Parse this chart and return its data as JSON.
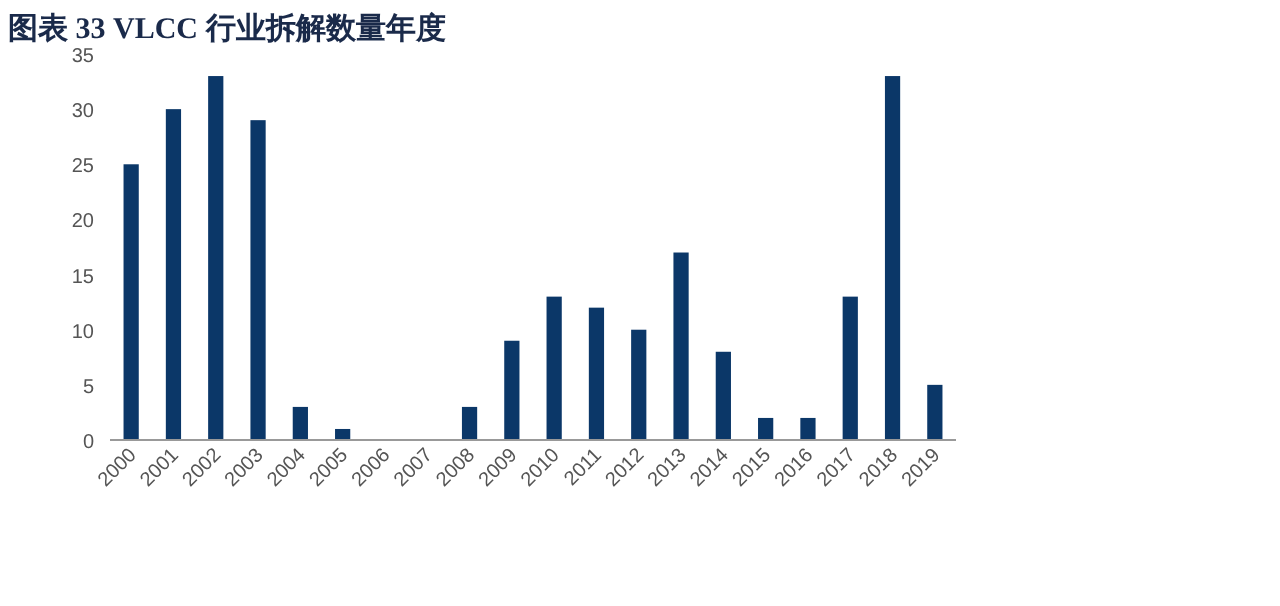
{
  "chart_data": {
    "type": "bar",
    "title": "图表 33   VLCC 行业拆解数量年度",
    "categories": [
      "2000",
      "2001",
      "2002",
      "2003",
      "2004",
      "2005",
      "2006",
      "2007",
      "2008",
      "2009",
      "2010",
      "2011",
      "2012",
      "2013",
      "2014",
      "2015",
      "2016",
      "2017",
      "2018",
      "2019"
    ],
    "values": [
      25,
      30,
      33,
      29,
      3,
      1,
      0,
      0,
      3,
      9,
      13,
      12,
      10,
      17,
      8,
      2,
      2,
      13,
      33,
      5
    ],
    "color": "#0b3768",
    "ylim": [
      0,
      35
    ],
    "yticks": [
      0,
      5,
      10,
      15,
      20,
      25,
      30,
      35
    ],
    "grid": false
  }
}
